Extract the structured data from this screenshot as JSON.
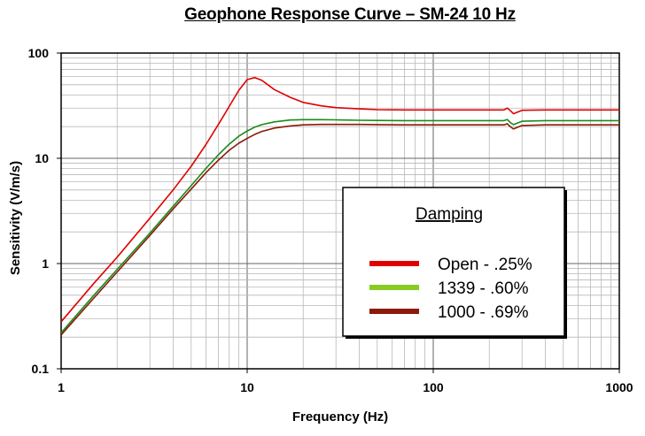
{
  "chart_data": {
    "type": "line",
    "title": "Geophone Response Curve – SM-24 10 Hz",
    "xlabel": "Frequency (Hz)",
    "ylabel": "Sensitivity (V/m/s)",
    "xscale": "log",
    "yscale": "log",
    "xlim": [
      1,
      1000
    ],
    "ylim": [
      0.1,
      100
    ],
    "xticks": [
      "1",
      "10",
      "100",
      "1000"
    ],
    "yticks": [
      "0.1",
      "1",
      "10",
      "100"
    ],
    "grid": true,
    "legend": {
      "title": "Damping",
      "placement": "right-center"
    },
    "series": [
      {
        "name": "Open - .25%",
        "color": "#e00000",
        "x": [
          1,
          1.5,
          2,
          3,
          4,
          5,
          6,
          7,
          8,
          9,
          10,
          11,
          12,
          14,
          17,
          20,
          25,
          30,
          40,
          50,
          70,
          100,
          150,
          200,
          240,
          250,
          260,
          270,
          300,
          400,
          500,
          700,
          1000
        ],
        "y": [
          0.28,
          0.65,
          1.15,
          2.7,
          5.0,
          8.4,
          13.5,
          21,
          31,
          44,
          56,
          58.5,
          55,
          45,
          38,
          34,
          31.5,
          30.3,
          29.5,
          29,
          28.8,
          28.8,
          28.8,
          28.8,
          28.8,
          30,
          28.3,
          26.5,
          28.6,
          28.8,
          28.8,
          28.8,
          28.8
        ]
      },
      {
        "name": "1339  - .60%",
        "color": "#1a8a1a",
        "x": [
          1,
          1.5,
          2,
          3,
          4,
          5,
          6,
          7,
          8,
          9,
          10,
          11,
          12,
          14,
          17,
          20,
          25,
          30,
          40,
          50,
          70,
          100,
          150,
          200,
          240,
          250,
          260,
          270,
          300,
          400,
          500,
          700,
          1000
        ],
        "y": [
          0.22,
          0.5,
          0.88,
          1.95,
          3.5,
          5.5,
          8.0,
          10.8,
          13.6,
          16.2,
          18.2,
          19.8,
          20.9,
          22.2,
          23.1,
          23.3,
          23.3,
          23.2,
          23.0,
          22.9,
          22.8,
          22.8,
          22.8,
          22.8,
          22.8,
          23.4,
          21.8,
          20.9,
          22.5,
          22.8,
          22.8,
          22.8,
          22.8
        ]
      },
      {
        "name": "1000  - .69%",
        "color": "#8b1a0a",
        "x": [
          1,
          1.5,
          2,
          3,
          4,
          5,
          6,
          7,
          8,
          9,
          10,
          11,
          12,
          14,
          17,
          20,
          25,
          30,
          40,
          50,
          70,
          100,
          150,
          200,
          240,
          250,
          260,
          270,
          300,
          400,
          500,
          700,
          1000
        ],
        "y": [
          0.21,
          0.47,
          0.83,
          1.85,
          3.3,
          5.1,
          7.3,
          9.6,
          11.9,
          13.9,
          15.5,
          16.9,
          18.0,
          19.4,
          20.3,
          20.8,
          21.0,
          21.0,
          21.0,
          20.9,
          20.8,
          20.8,
          20.8,
          20.8,
          20.8,
          21.3,
          19.9,
          19.0,
          20.5,
          20.8,
          20.8,
          20.8,
          20.8
        ]
      }
    ]
  }
}
